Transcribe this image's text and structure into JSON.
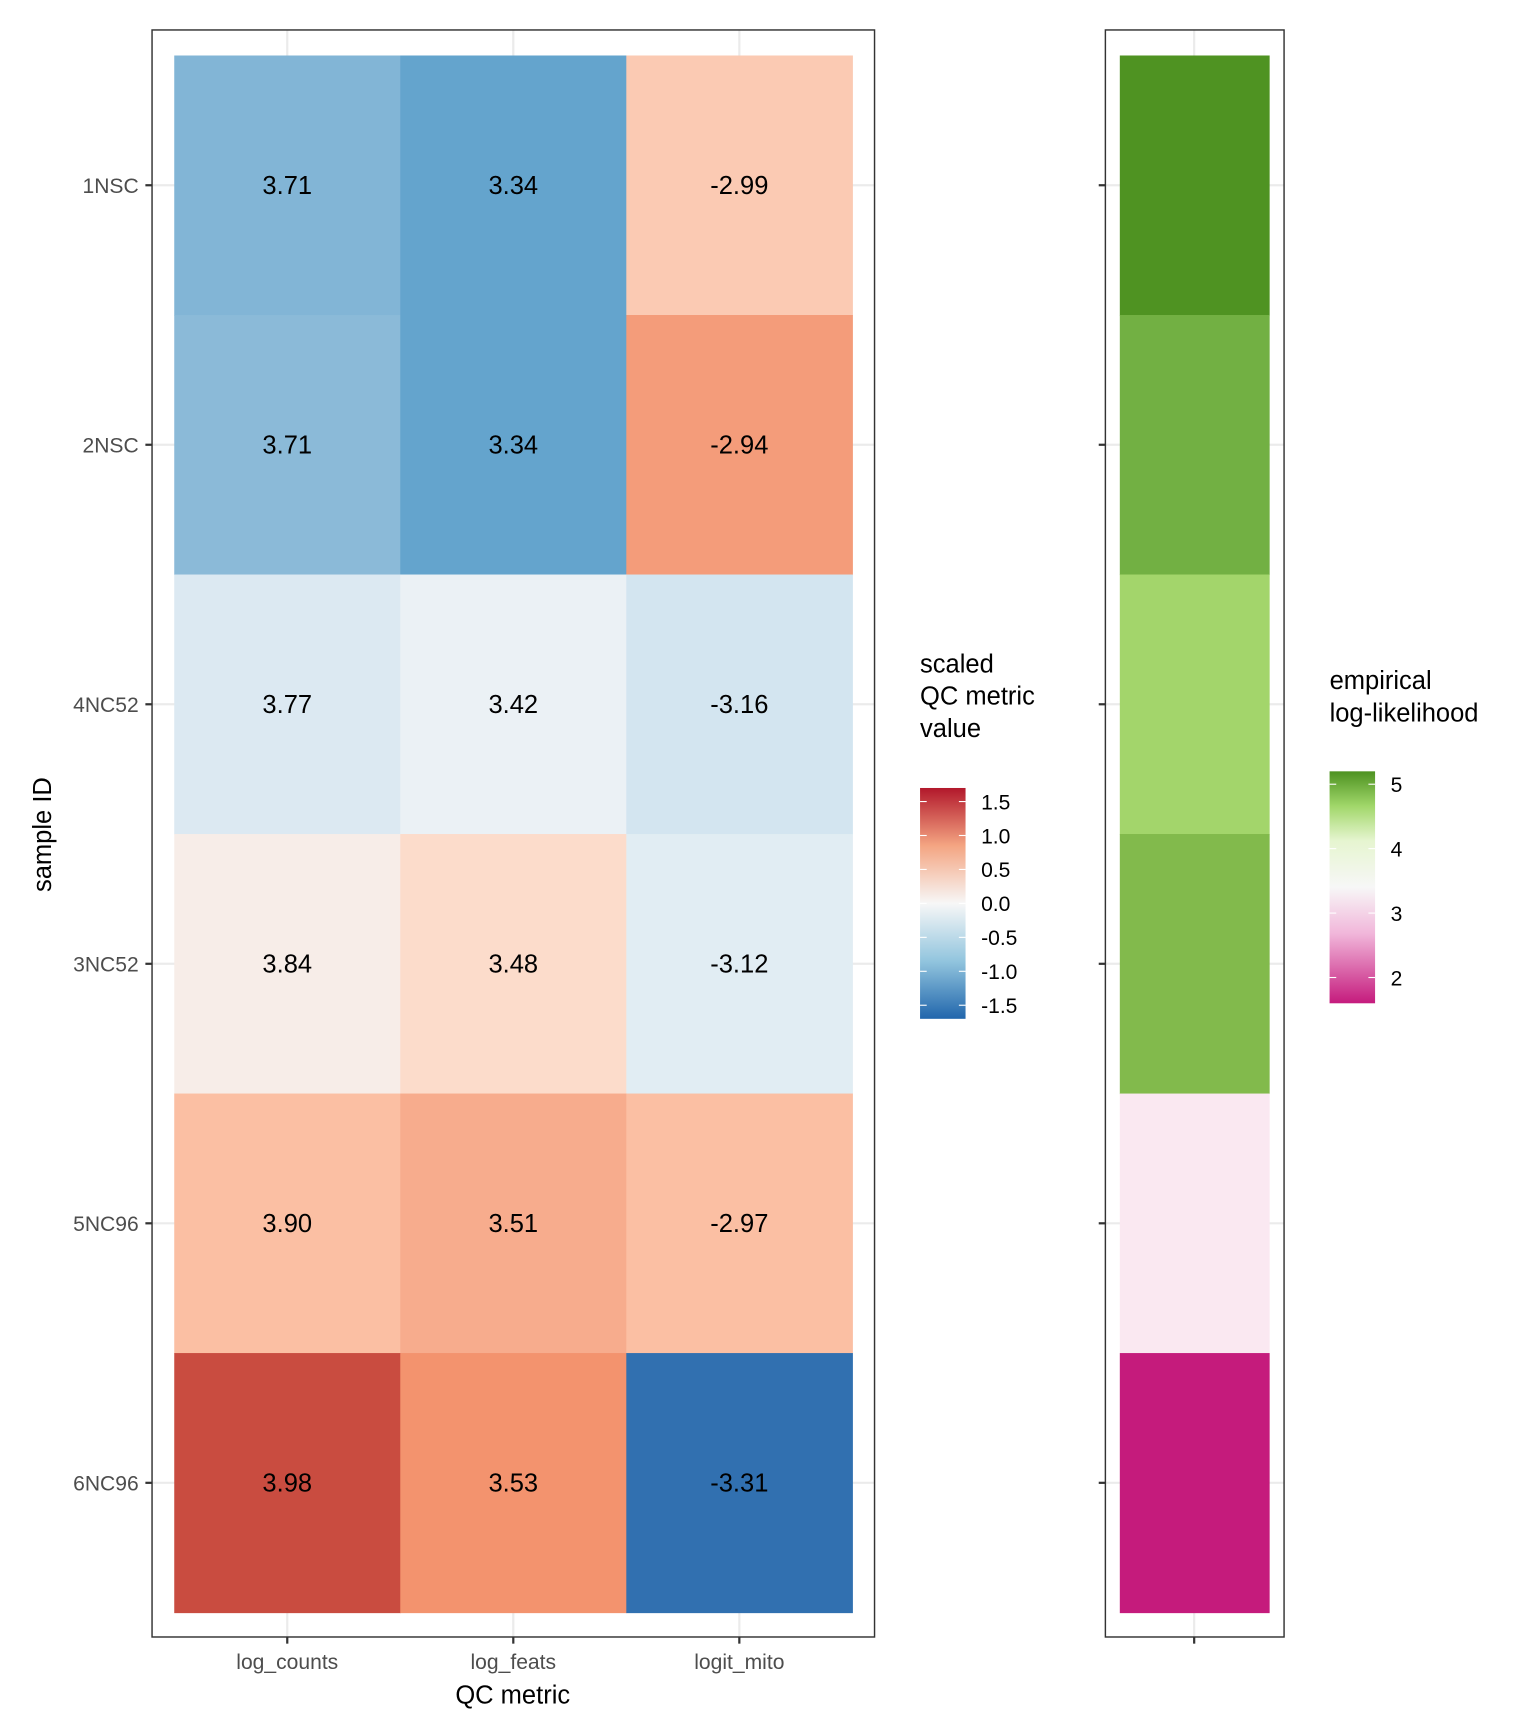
{
  "chart_data": [
    {
      "type": "heatmap",
      "xlabel": "QC metric",
      "ylabel": "sample ID",
      "x_categories": [
        "log_counts",
        "log_feats",
        "logit_mito"
      ],
      "y_categories": [
        "1NSC",
        "2NSC",
        "4NC52",
        "3NC52",
        "5NC96",
        "6NC96"
      ],
      "values": [
        [
          "3.71",
          "3.34",
          "-2.99"
        ],
        [
          "3.71",
          "3.34",
          "-2.94"
        ],
        [
          "3.77",
          "3.42",
          "-3.16"
        ],
        [
          "3.84",
          "3.48",
          "-3.12"
        ],
        [
          "3.90",
          "3.51",
          "-2.97"
        ],
        [
          "3.98",
          "3.53",
          "-3.31"
        ]
      ],
      "fill_colors": [
        [
          "#82b5d6",
          "#64a4cd",
          "#fbcab3"
        ],
        [
          "#8bbad8",
          "#64a4cd",
          "#f49c7a"
        ],
        [
          "#dce9f2",
          "#ebf1f5",
          "#d3e5f0"
        ],
        [
          "#f7ede8",
          "#fcdccb",
          "#e1edf3"
        ],
        [
          "#fbbfa3",
          "#f7ac8d",
          "#fbbfa3"
        ],
        [
          "#c94c40",
          "#f3936e",
          "#3170b0"
        ]
      ],
      "legend": {
        "title": [
          "scaled",
          "QC metric",
          "value"
        ],
        "ticks": [
          "1.5",
          "1.0",
          "0.5",
          "0.0",
          "-0.5",
          "-1.0",
          "-1.5"
        ],
        "range": [
          -1.7,
          1.7
        ],
        "colors": [
          "#2166ac",
          "#f7f7f7",
          "#b2182b"
        ],
        "placement": "right"
      },
      "grid": true
    },
    {
      "type": "heatmap",
      "y_categories": [
        "1NSC",
        "2NSC",
        "4NC52",
        "3NC52",
        "5NC96",
        "6NC96"
      ],
      "values": [
        5.1,
        4.8,
        4.5,
        4.7,
        3.2,
        1.9
      ],
      "fill_colors": [
        "#4f9322",
        "#72b043",
        "#a3d56b",
        "#82ba4c",
        "#fae8f1",
        "#c51b7c"
      ],
      "legend": {
        "title": [
          "empirical",
          "log-likelihood"
        ],
        "ticks": [
          "5",
          "4",
          "3",
          "2"
        ],
        "range": [
          1.6,
          5.2
        ],
        "colors": [
          "#c51b7d",
          "#f7f7f7",
          "#4d9221"
        ],
        "placement": "right"
      },
      "grid": true
    }
  ]
}
